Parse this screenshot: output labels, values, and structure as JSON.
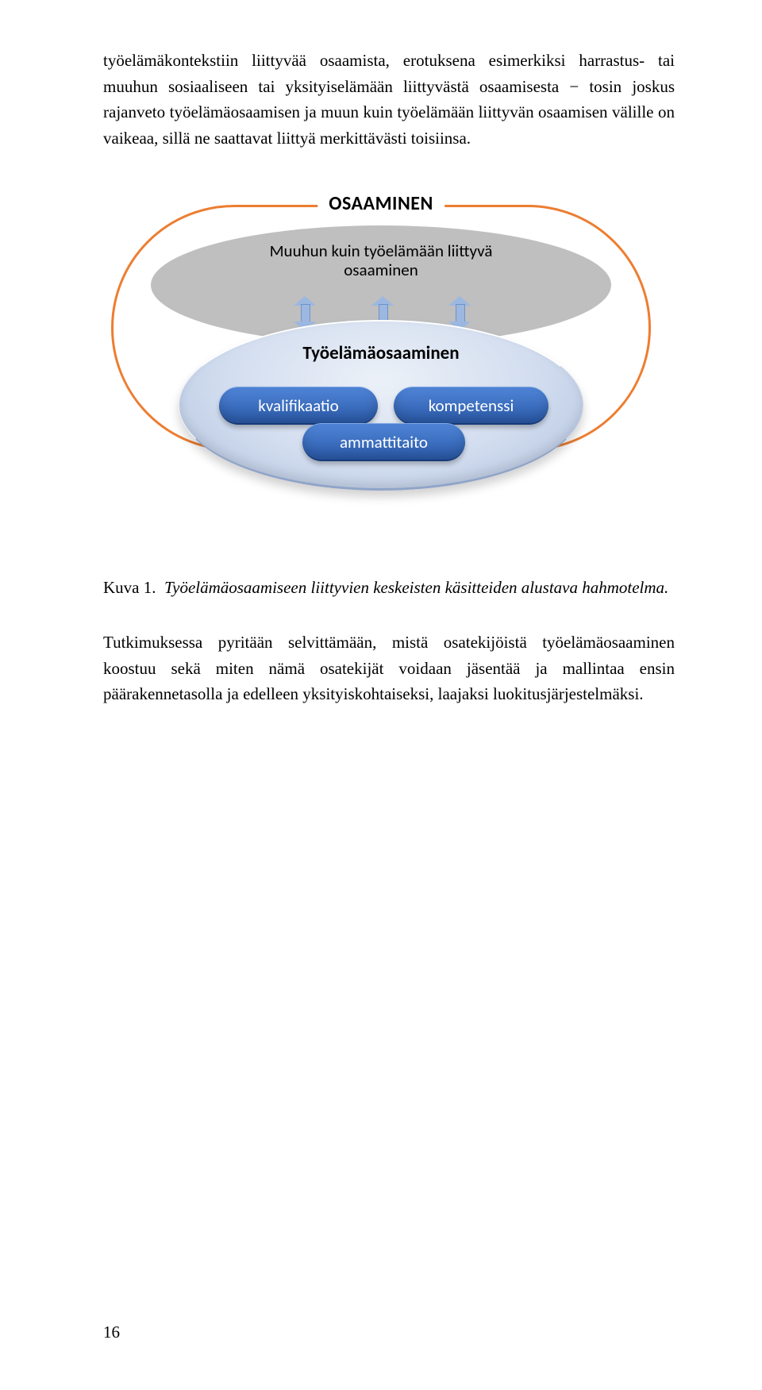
{
  "paragraphs": {
    "p1": "työelämäkontekstiin liittyvää osaamista, erotuksena esimerkiksi harrastus- tai muuhun sosiaaliseen tai yksityiselämään liittyvästä osaamisesta − tosin joskus rajanveto työelämäosaamisen ja muun kuin työelämään liittyvän osaamisen välille on vaikeaa, sillä ne saattavat liittyä merkittävästi toisiinsa.",
    "p2": "Tutkimuksessa pyritään selvittämään, mistä osatekijöistä työelämäosaaminen koostuu sekä miten nämä osatekijät voidaan jäsentää ja mallintaa ensin päärakennetasolla ja edelleen yksityiskohtaiseksi, laajaksi luokitusjärjestelmäksi."
  },
  "caption": {
    "label": "Kuva 1.",
    "text": "Työelämäosaamiseen liittyvien keskeisten käsitteiden alustava hahmotelma."
  },
  "diagram": {
    "title": "OSAAMINEN",
    "grey_label_line1": "Muuhun kuin työelämään liittyvä",
    "grey_label_line2": "osaaminen",
    "blue_label": "Työelämäosaaminen",
    "pill_kvalifikaatio": "kvalifikaatio",
    "pill_kompetenssi": "kompetenssi",
    "pill_ammattitaito": "ammattitaito",
    "colors": {
      "outer_border": "#ed7d31",
      "grey_fill": "#bfbfbf",
      "grey_text": "#000000",
      "pill_top": "#4f84d6",
      "pill_bottom": "#2b5bab",
      "arrow_fill": "#9cb8e0",
      "arrow_border": "#6f91c9"
    }
  },
  "page_number": "16"
}
